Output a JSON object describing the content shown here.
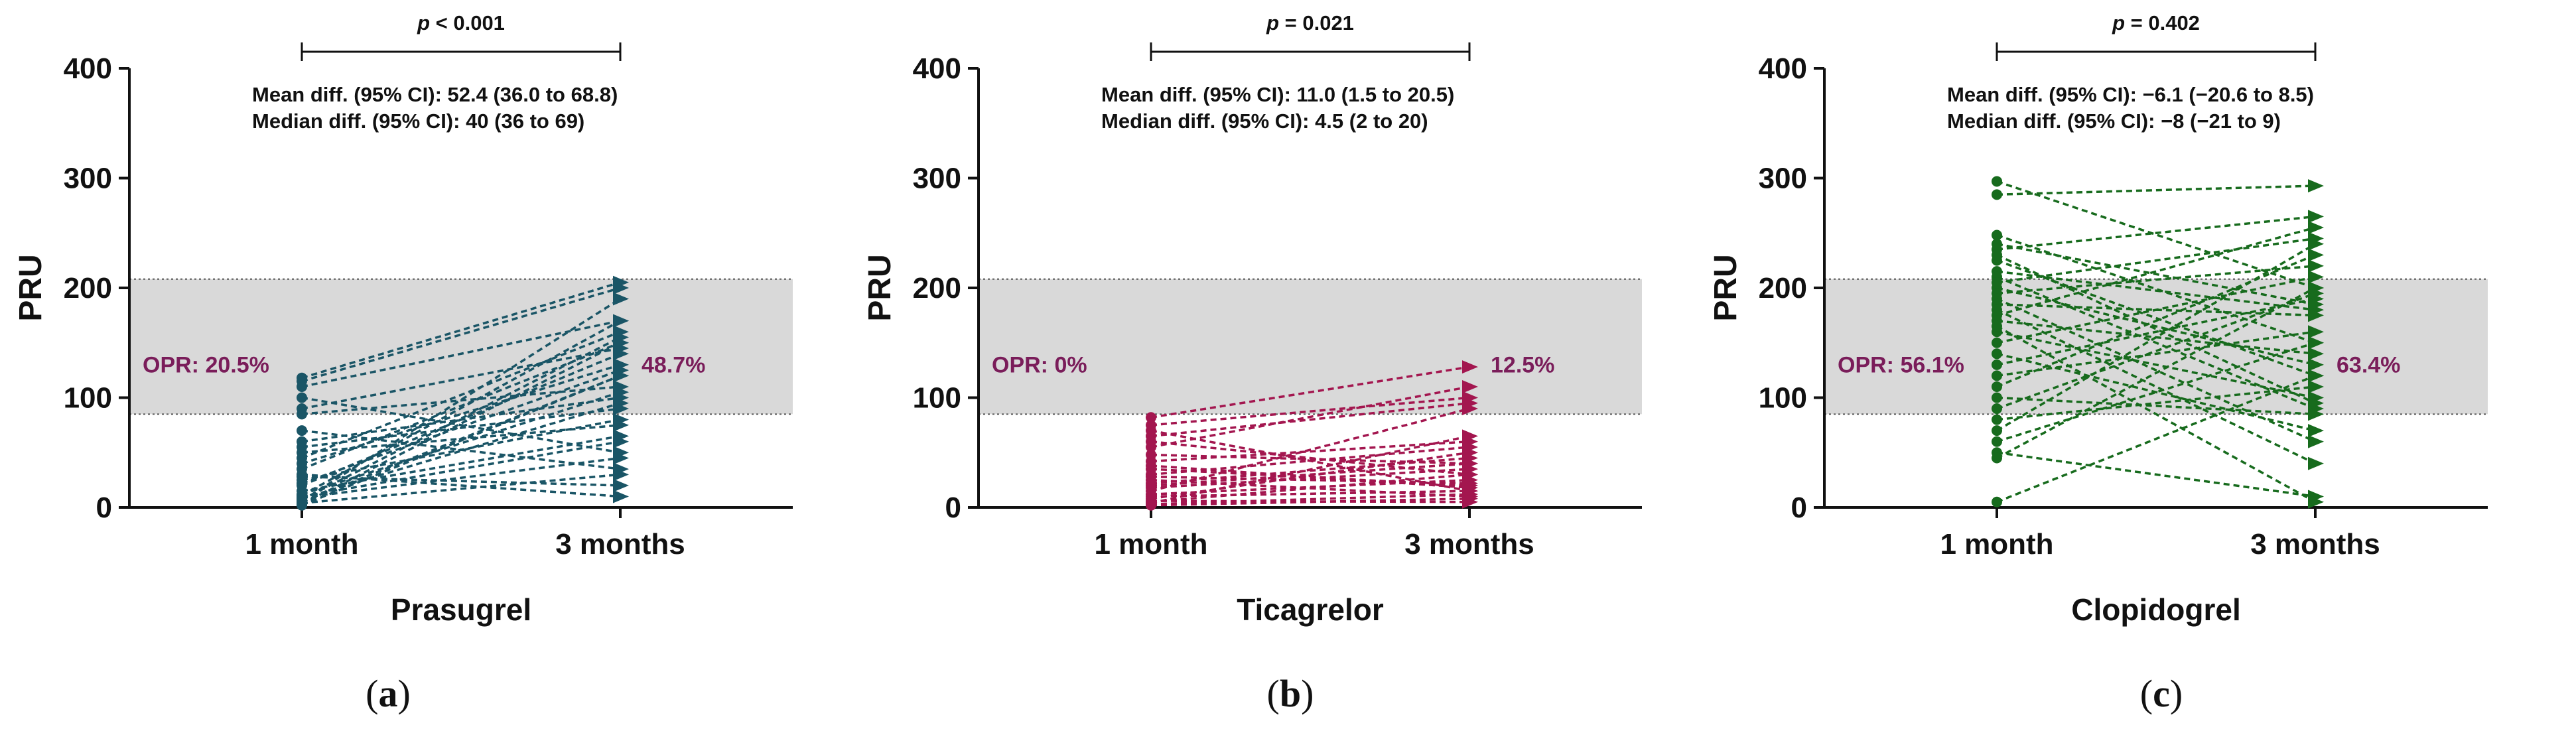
{
  "chart_data": [
    {
      "type": "paired-line",
      "drug": "Prasugrel",
      "panel": "a",
      "color": "#1a5566",
      "ylabel": "PRU",
      "ylim": [
        0,
        400
      ],
      "yticks": [
        "0",
        "100",
        "200",
        "300",
        "400"
      ],
      "categories": [
        "1 month",
        "3 months"
      ],
      "shaded_band": [
        85,
        208
      ],
      "p_value_label": "p",
      "p_value_text": " < 0.001",
      "mean_diff": "Mean diff. (95% CI): 52.4 (36.0 to 68.8)",
      "median_diff": "Median diff. (95% CI): 40 (36 to 69)",
      "opr_1m": "OPR: 20.5%",
      "opr_3m": "48.7%",
      "pairs": [
        [
          5,
          120
        ],
        [
          8,
          95
        ],
        [
          3,
          150
        ],
        [
          10,
          60
        ],
        [
          4,
          30
        ],
        [
          115,
          200
        ],
        [
          110,
          170
        ],
        [
          100,
          50
        ],
        [
          90,
          145
        ],
        [
          85,
          110
        ],
        [
          70,
          35
        ],
        [
          55,
          90
        ],
        [
          45,
          160
        ],
        [
          40,
          130
        ],
        [
          30,
          10
        ],
        [
          25,
          80
        ],
        [
          20,
          140
        ],
        [
          15,
          65
        ],
        [
          12,
          105
        ],
        [
          6,
          190
        ],
        [
          2,
          120
        ],
        [
          7,
          155
        ],
        [
          9,
          45
        ],
        [
          11,
          170
        ],
        [
          118,
          205
        ],
        [
          60,
          100
        ],
        [
          50,
          75
        ],
        [
          35,
          150
        ],
        [
          28,
          20
        ],
        [
          22,
          125
        ]
      ]
    },
    {
      "type": "paired-line",
      "drug": "Ticagrelor",
      "panel": "b",
      "color": "#a3164f",
      "ylabel": "PRU",
      "ylim": [
        0,
        400
      ],
      "yticks": [
        "0",
        "100",
        "200",
        "300",
        "400"
      ],
      "categories": [
        "1 month",
        "3 months"
      ],
      "shaded_band": [
        85,
        208
      ],
      "p_value_label": "p",
      "p_value_text": " = 0.021",
      "mean_diff": "Mean diff. (95% CI): 11.0 (1.5 to 20.5)",
      "median_diff": "Median diff. (95% CI): 4.5 (2 to 20)",
      "opr_1m": "OPR: 0%",
      "opr_3m": "12.5%",
      "pairs": [
        [
          82,
          128
        ],
        [
          75,
          100
        ],
        [
          65,
          95
        ],
        [
          55,
          110
        ],
        [
          48,
          40
        ],
        [
          42,
          60
        ],
        [
          35,
          20
        ],
        [
          30,
          55
        ],
        [
          25,
          10
        ],
        [
          22,
          45
        ],
        [
          18,
          35
        ],
        [
          15,
          90
        ],
        [
          12,
          25
        ],
        [
          10,
          15
        ],
        [
          8,
          50
        ],
        [
          6,
          5
        ],
        [
          5,
          30
        ],
        [
          4,
          65
        ],
        [
          3,
          12
        ],
        [
          2,
          8
        ],
        [
          20,
          40
        ],
        [
          28,
          22
        ],
        [
          38,
          18
        ],
        [
          60,
          30
        ],
        [
          70,
          15
        ]
      ]
    },
    {
      "type": "paired-line",
      "drug": "Clopidogrel",
      "panel": "c",
      "color": "#176b1d",
      "ylabel": "PRU",
      "ylim": [
        0,
        400
      ],
      "yticks": [
        "0",
        "100",
        "200",
        "300",
        "400"
      ],
      "categories": [
        "1 month",
        "3 months"
      ],
      "shaded_band": [
        85,
        208
      ],
      "p_value_label": "p",
      "p_value_text": " = 0.402",
      "mean_diff": "Mean diff. (95% CI): −6.1 (−20.6 to 8.5)",
      "median_diff": "Median diff. (95% CI): −8 (−21 to 9)",
      "opr_1m": "OPR: 56.1%",
      "opr_3m": "63.4%",
      "pairs": [
        [
          297,
          200
        ],
        [
          285,
          293
        ],
        [
          248,
          150
        ],
        [
          235,
          265
        ],
        [
          225,
          120
        ],
        [
          215,
          180
        ],
        [
          210,
          90
        ],
        [
          205,
          245
        ],
        [
          200,
          130
        ],
        [
          195,
          220
        ],
        [
          190,
          60
        ],
        [
          185,
          175
        ],
        [
          180,
          40
        ],
        [
          175,
          255
        ],
        [
          170,
          140
        ],
        [
          160,
          100
        ],
        [
          150,
          210
        ],
        [
          140,
          70
        ],
        [
          130,
          190
        ],
        [
          120,
          160
        ],
        [
          110,
          230
        ],
        [
          100,
          85
        ],
        [
          90,
          195
        ],
        [
          80,
          110
        ],
        [
          70,
          240
        ],
        [
          60,
          150
        ],
        [
          50,
          10
        ],
        [
          45,
          200
        ],
        [
          5,
          120
        ],
        [
          165,
          5
        ],
        [
          230,
          95
        ],
        [
          240,
          185
        ]
      ]
    }
  ],
  "panel_labels": [
    "(a)",
    "(b)",
    "(c)"
  ]
}
